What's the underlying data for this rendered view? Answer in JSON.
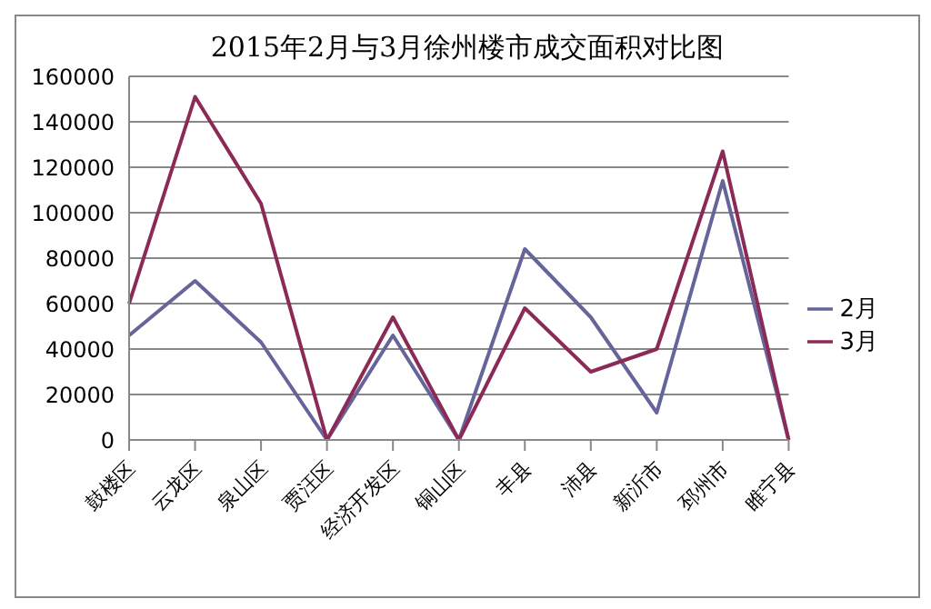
{
  "chart_data": {
    "type": "line",
    "title": "2015年2月与3月徐州楼市成交面积对比图",
    "categories": [
      "鼓楼区",
      "云龙区",
      "泉山区",
      "贾汪区",
      "经济开发区",
      "铜山区",
      "丰县",
      "沛县",
      "新沂市",
      "邳州市",
      "睢宁县"
    ],
    "series": [
      {
        "name": "2月",
        "color": "#65659a",
        "values": [
          46000,
          70000,
          43000,
          0,
          46000,
          0,
          84000,
          54000,
          12000,
          114000,
          0
        ]
      },
      {
        "name": "3月",
        "color": "#8b2a57",
        "values": [
          60000,
          151000,
          104000,
          0,
          54000,
          0,
          58000,
          30000,
          40000,
          127000,
          0
        ]
      }
    ],
    "ylim": [
      0,
      160000
    ],
    "yticks": [
      0,
      20000,
      40000,
      60000,
      80000,
      100000,
      120000,
      140000,
      160000
    ],
    "grid": "y",
    "legend": "right",
    "marker": "none",
    "line_style": "solid"
  }
}
